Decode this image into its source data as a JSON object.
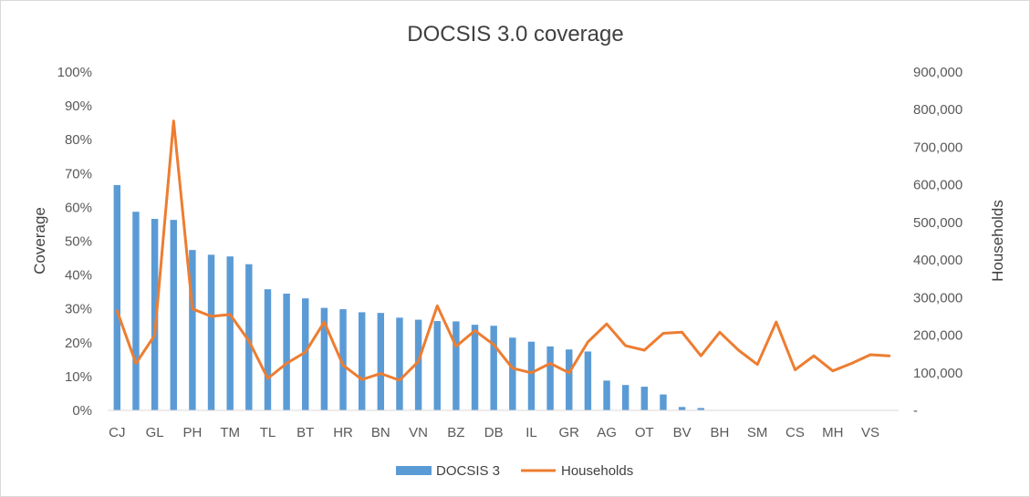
{
  "chart_data": {
    "type": "bar+line",
    "title": "DOCSIS 3.0 coverage",
    "ylabel": "Coverage",
    "y2label": "Households",
    "ylim": [
      0,
      1
    ],
    "y2lim": [
      0,
      900000
    ],
    "y_ticks": [
      "0%",
      "10%",
      "20%",
      "30%",
      "40%",
      "50%",
      "60%",
      "70%",
      "80%",
      "90%",
      "100%"
    ],
    "y2_ticks": [
      "-",
      "100,000",
      "200,000",
      "300,000",
      "400,000",
      "500,000",
      "600,000",
      "700,000",
      "800,000",
      "900,000"
    ],
    "categories": [
      "CJ",
      "",
      "GL",
      "",
      "PH",
      "",
      "TM",
      "",
      "TL",
      "",
      "BT",
      "",
      "HR",
      "",
      "BN",
      "",
      "VN",
      "",
      "BZ",
      "",
      "DB",
      "",
      "IL",
      "",
      "GR",
      "",
      "AG",
      "",
      "OT",
      "",
      "BV",
      "",
      "BH",
      "",
      "SM",
      "",
      "CS",
      "",
      "MH",
      "",
      "VS",
      ""
    ],
    "grid": false,
    "legend_position": "bottom",
    "colors": {
      "bars": "#5b9bd5",
      "line": "#ed7d31"
    },
    "series": [
      {
        "name": "DOCSIS 3",
        "kind": "bar",
        "axis": "left",
        "values": [
          0.666,
          0.587,
          0.566,
          0.563,
          0.474,
          0.46,
          0.455,
          0.432,
          0.358,
          0.345,
          0.331,
          0.303,
          0.299,
          0.29,
          0.288,
          0.274,
          0.268,
          0.264,
          0.263,
          0.253,
          0.25,
          0.215,
          0.203,
          0.189,
          0.18,
          0.174,
          0.088,
          0.075,
          0.07,
          0.047,
          0.01,
          0.007,
          0,
          0,
          0,
          0,
          0,
          0,
          0,
          0,
          0,
          0
        ]
      },
      {
        "name": "Households",
        "kind": "line",
        "axis": "right",
        "values": [
          265000,
          125000,
          200000,
          770000,
          270000,
          250000,
          255000,
          185000,
          85000,
          125000,
          155000,
          235000,
          120000,
          82000,
          98000,
          80000,
          130000,
          278000,
          170000,
          212000,
          175000,
          112000,
          100000,
          125000,
          100000,
          182000,
          230000,
          172000,
          160000,
          205000,
          208000,
          145000,
          208000,
          160000,
          122000,
          235000,
          108000,
          145000,
          105000,
          125000,
          148000,
          145000
        ]
      }
    ]
  }
}
